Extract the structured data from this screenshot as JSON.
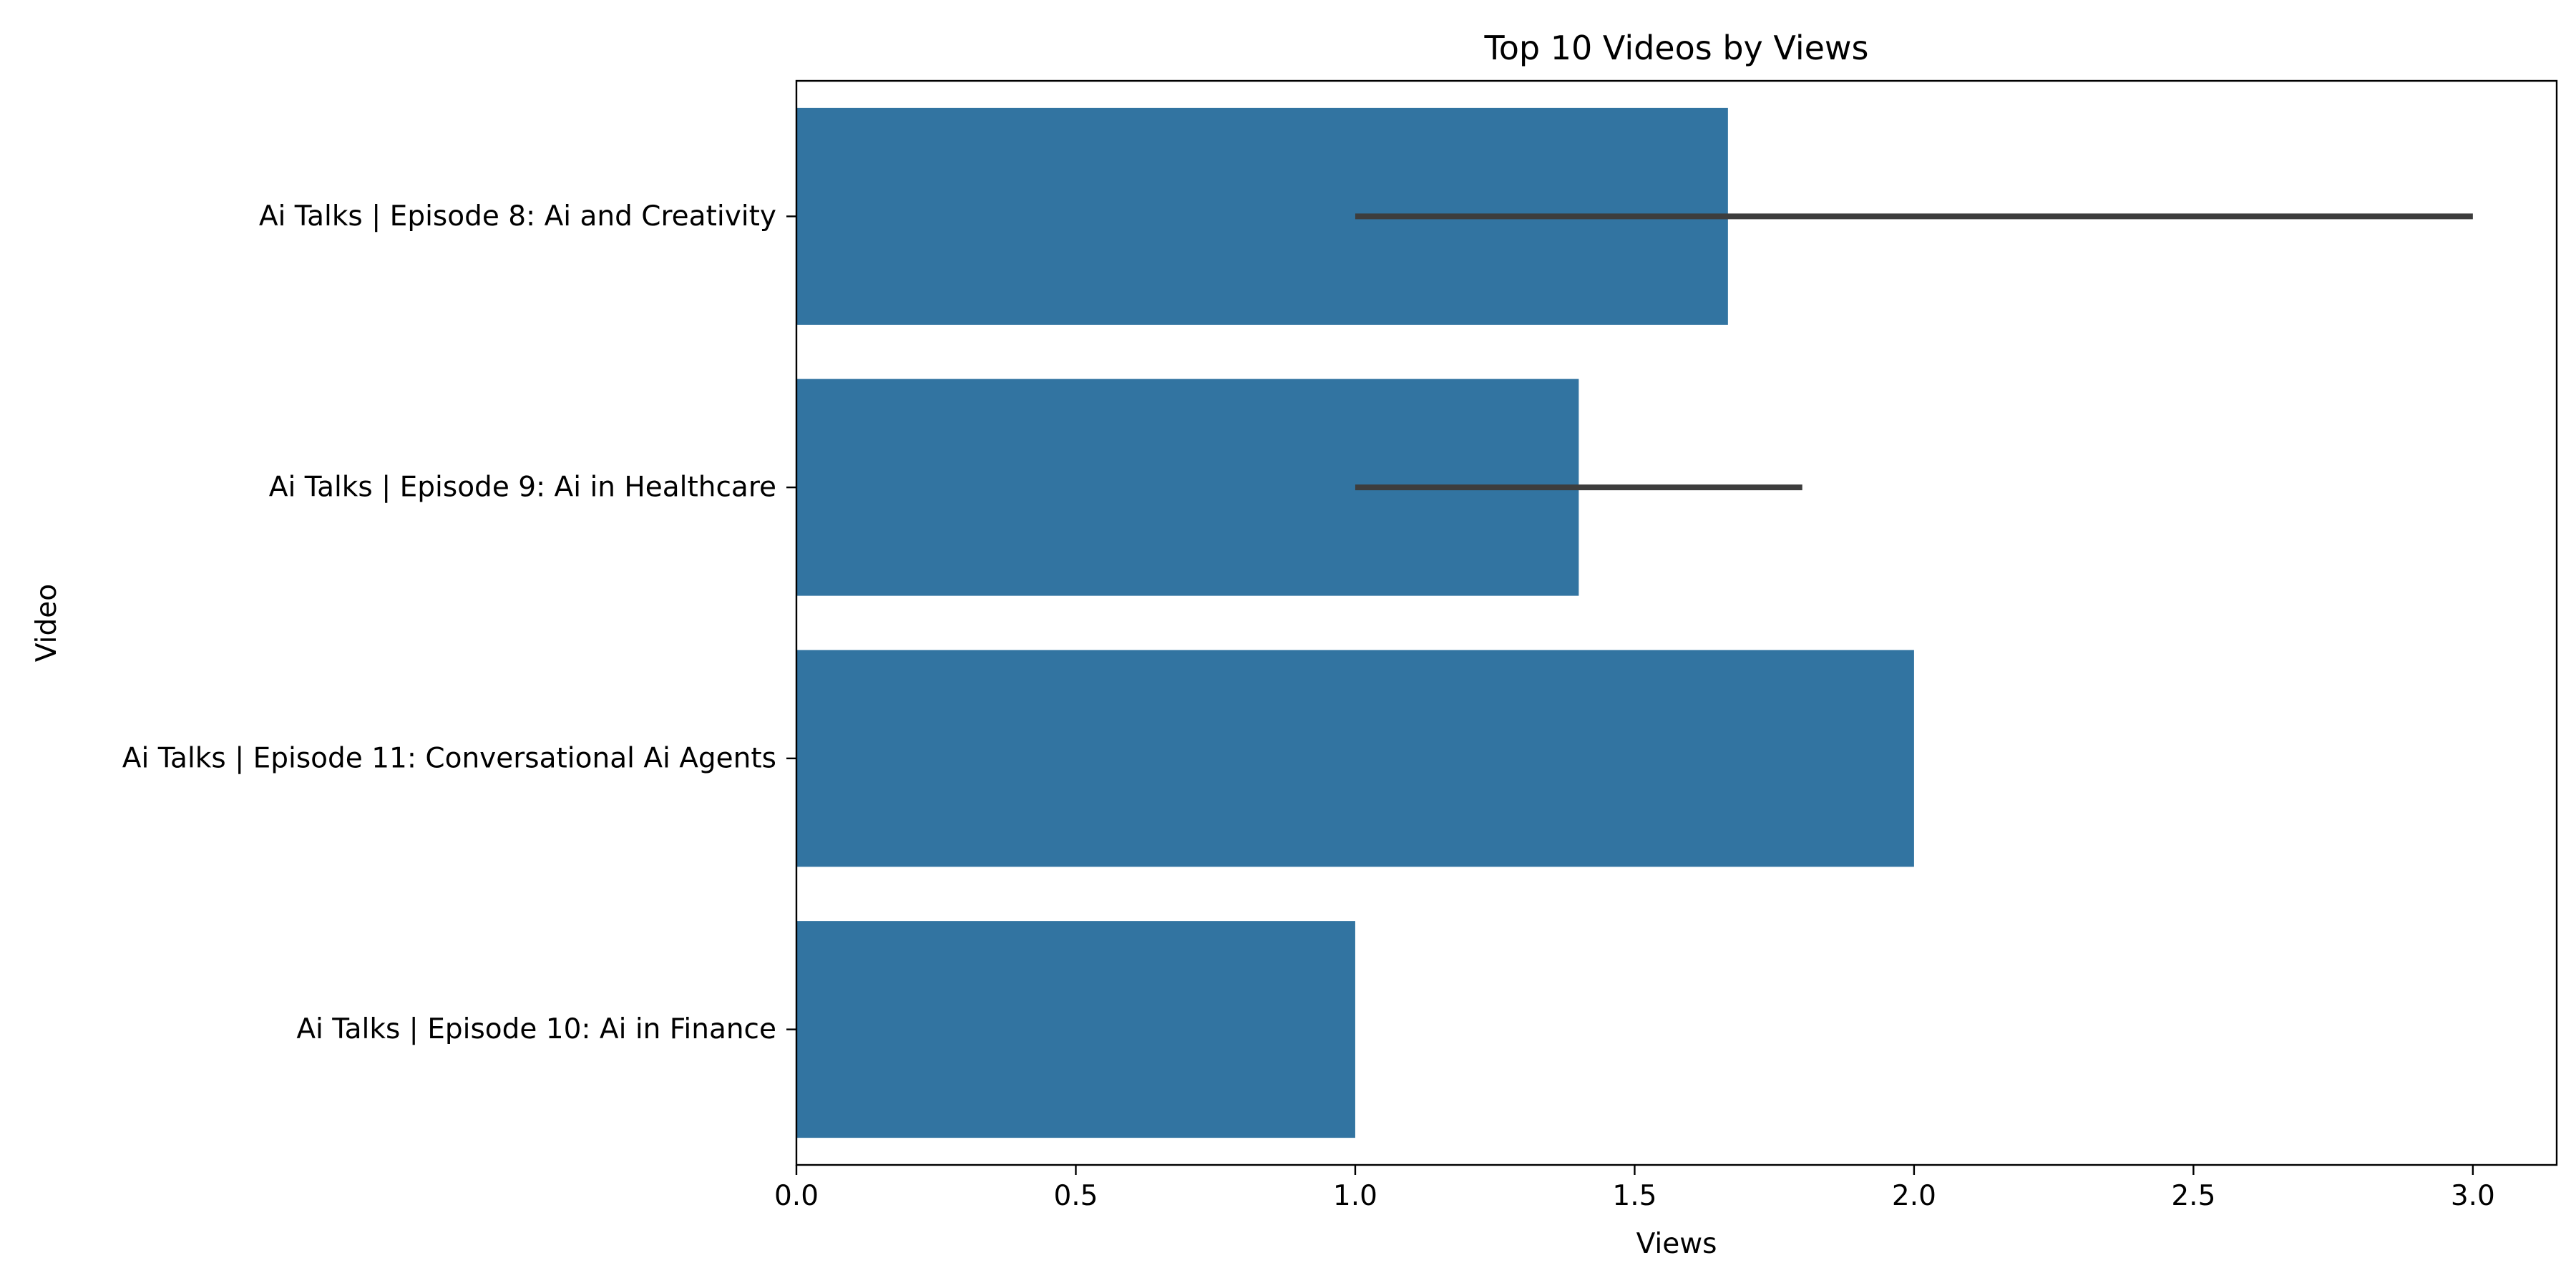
{
  "chart_data": {
    "type": "bar",
    "orientation": "horizontal",
    "title": "Top 10 Videos by Views",
    "xlabel": "Views",
    "ylabel": "Video",
    "xlim": [
      0,
      3.15
    ],
    "x_ticks": [
      0.0,
      0.5,
      1.0,
      1.5,
      2.0,
      2.5,
      3.0
    ],
    "x_tick_labels": [
      "0.0",
      "0.5",
      "1.0",
      "1.5",
      "2.0",
      "2.5",
      "3.0"
    ],
    "grid": false,
    "legend": "none",
    "bar_color": "#3274a1",
    "errorbar_color": "#3d3d3d",
    "categories": [
      "Ai Talks | Episode 8: Ai and Creativity",
      "Ai Talks | Episode 9: Ai in Healthcare",
      "Ai Talks | Episode 11: Conversational Ai Agents",
      "Ai Talks | Episode 10: Ai in Finance"
    ],
    "values": [
      1.667,
      1.4,
      2.0,
      1.0
    ],
    "error_low": [
      1.0,
      1.0,
      null,
      null
    ],
    "error_high": [
      3.0,
      1.8,
      null,
      null
    ]
  }
}
